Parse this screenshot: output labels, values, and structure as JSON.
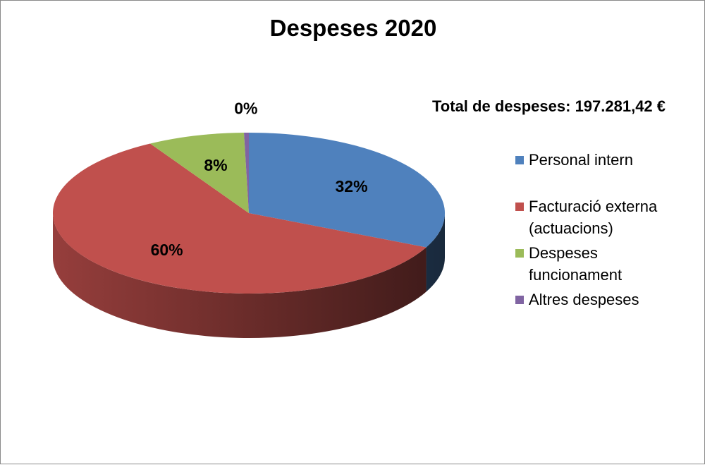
{
  "chart_data": {
    "type": "pie",
    "title": "Despeses 2020",
    "subtitle": "Total de despeses:",
    "total": "197.281,42 €",
    "style": "3d",
    "legend_position": "right",
    "slices": [
      {
        "name": "Personal intern",
        "value": 32,
        "label": "32%",
        "color": "#4F81BD"
      },
      {
        "name": "Facturació externa (actuacions)",
        "value": 59.6,
        "label": "60%",
        "color": "#C0504D"
      },
      {
        "name": "Despeses funcionament",
        "value": 8,
        "label": "8%",
        "color": "#9BBB59"
      },
      {
        "name": "Altres despeses",
        "value": 0.4,
        "label": "0%",
        "color": "#8064A2"
      }
    ]
  }
}
